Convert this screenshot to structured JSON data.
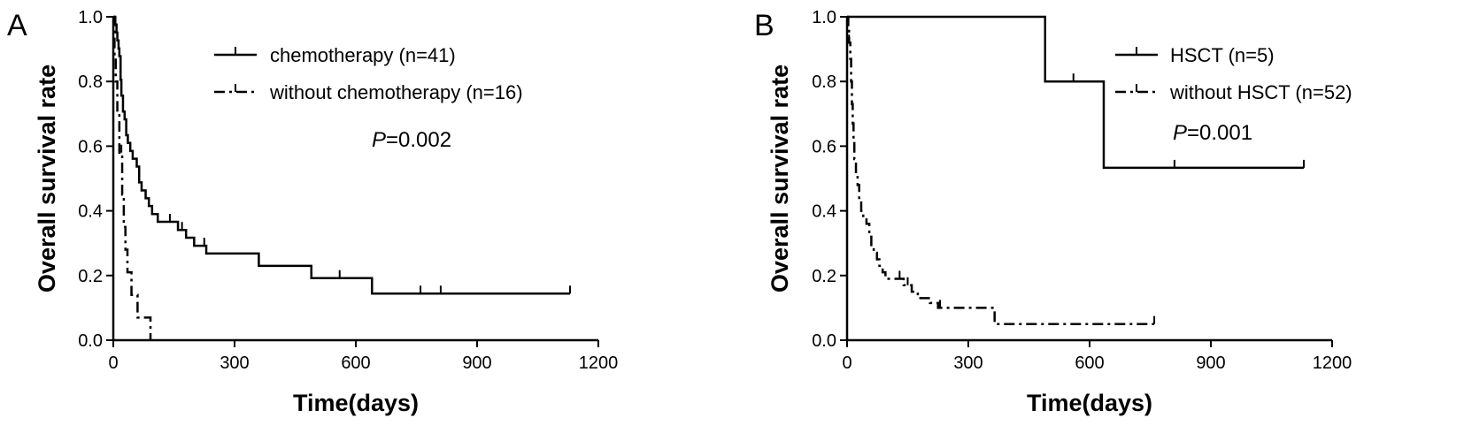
{
  "chart_data": [
    {
      "type": "line",
      "panel_label": "A",
      "xlabel": "Time(days)",
      "ylabel": "Overall survival rate",
      "xlim": [
        0,
        1200
      ],
      "ylim": [
        0,
        1.0
      ],
      "x_ticks": [
        "0",
        "300",
        "600",
        "900",
        "1200"
      ],
      "y_ticks": [
        "0.0",
        "0.2",
        "0.4",
        "0.6",
        "0.8",
        "1.0"
      ],
      "annotation": {
        "prefix": "P",
        "value": "=0.002"
      },
      "legend_position": "top-right",
      "series": [
        {
          "name": "chemotherapy (n=41)",
          "style": "solid",
          "steps": [
            [
              0,
              1.0
            ],
            [
              5,
              0.976
            ],
            [
              8,
              0.951
            ],
            [
              10,
              0.927
            ],
            [
              13,
              0.902
            ],
            [
              15,
              0.878
            ],
            [
              18,
              0.805
            ],
            [
              20,
              0.756
            ],
            [
              24,
              0.707
            ],
            [
              28,
              0.683
            ],
            [
              32,
              0.634
            ],
            [
              36,
              0.61
            ],
            [
              42,
              0.585
            ],
            [
              48,
              0.561
            ],
            [
              58,
              0.537
            ],
            [
              64,
              0.488
            ],
            [
              70,
              0.463
            ],
            [
              80,
              0.439
            ],
            [
              88,
              0.415
            ],
            [
              96,
              0.39
            ],
            [
              110,
              0.366
            ],
            [
              160,
              0.341
            ],
            [
              180,
              0.317
            ],
            [
              200,
              0.292
            ],
            [
              230,
              0.268
            ],
            [
              360,
              0.23
            ],
            [
              490,
              0.192
            ],
            [
              640,
              0.144
            ]
          ],
          "end": 1130,
          "censors": [
            [
              140,
              0.366
            ],
            [
              170,
              0.341
            ],
            [
              225,
              0.292
            ],
            [
              560,
              0.192
            ],
            [
              760,
              0.144
            ],
            [
              810,
              0.144
            ],
            [
              1130,
              0.144
            ]
          ]
        },
        {
          "name": "without chemotherapy (n=16)",
          "style": "dashdot",
          "steps": [
            [
              0,
              1.0
            ],
            [
              3,
              0.875
            ],
            [
              6,
              0.8
            ],
            [
              10,
              0.7
            ],
            [
              15,
              0.58
            ],
            [
              22,
              0.45
            ],
            [
              26,
              0.35
            ],
            [
              30,
              0.28
            ],
            [
              35,
              0.21
            ],
            [
              45,
              0.14
            ],
            [
              60,
              0.07
            ],
            [
              92,
              0.0
            ]
          ],
          "end": 92,
          "censors": [
            [
              20,
              0.58
            ]
          ]
        }
      ]
    },
    {
      "type": "line",
      "panel_label": "B",
      "xlabel": "Time(days)",
      "ylabel": "Overall survival rate",
      "xlim": [
        0,
        1200
      ],
      "ylim": [
        0,
        1.0
      ],
      "x_ticks": [
        "0",
        "300",
        "600",
        "900",
        "1200"
      ],
      "y_ticks": [
        "0.0",
        "0.2",
        "0.4",
        "0.6",
        "0.8",
        "1.0"
      ],
      "annotation": {
        "prefix": "P",
        "value": "=0.001"
      },
      "legend_position": "top-right",
      "series": [
        {
          "name": "HSCT (n=5)",
          "style": "solid",
          "steps": [
            [
              0,
              1.0
            ],
            [
              490,
              0.8
            ],
            [
              635,
              0.533
            ]
          ],
          "end": 1130,
          "censors": [
            [
              560,
              0.8
            ],
            [
              810,
              0.533
            ],
            [
              1130,
              0.533
            ]
          ]
        },
        {
          "name": "without HSCT (n=52)",
          "style": "dashdot",
          "steps": [
            [
              0,
              1.0
            ],
            [
              3,
              0.96
            ],
            [
              5,
              0.92
            ],
            [
              8,
              0.87
            ],
            [
              10,
              0.8
            ],
            [
              12,
              0.73
            ],
            [
              14,
              0.67
            ],
            [
              16,
              0.62
            ],
            [
              18,
              0.56
            ],
            [
              22,
              0.52
            ],
            [
              26,
              0.48
            ],
            [
              30,
              0.44
            ],
            [
              35,
              0.4
            ],
            [
              40,
              0.38
            ],
            [
              48,
              0.36
            ],
            [
              55,
              0.33
            ],
            [
              60,
              0.29
            ],
            [
              66,
              0.27
            ],
            [
              74,
              0.25
            ],
            [
              80,
              0.23
            ],
            [
              88,
              0.21
            ],
            [
              95,
              0.19
            ],
            [
              140,
              0.17
            ],
            [
              160,
              0.15
            ],
            [
              175,
              0.13
            ],
            [
              205,
              0.115
            ],
            [
              225,
              0.1
            ],
            [
              365,
              0.05
            ]
          ],
          "end": 760,
          "censors": [
            [
              5,
              0.92
            ],
            [
              130,
              0.19
            ],
            [
              150,
              0.17
            ],
            [
              230,
              0.1
            ],
            [
              760,
              0.05
            ]
          ]
        }
      ]
    }
  ]
}
